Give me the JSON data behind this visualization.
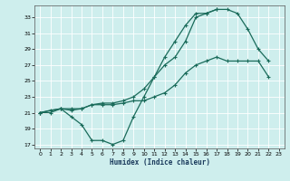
{
  "xlabel": "Humidex (Indice chaleur)",
  "bg_color": "#ceeeed",
  "grid_color": "#ffffff",
  "line_color": "#1a6b5a",
  "xlim": [
    -0.5,
    23.5
  ],
  "ylim": [
    16.5,
    34.5
  ],
  "yticks": [
    17,
    19,
    21,
    23,
    25,
    27,
    29,
    31,
    33
  ],
  "xticks": [
    0,
    1,
    2,
    3,
    4,
    5,
    6,
    7,
    8,
    9,
    10,
    11,
    12,
    13,
    14,
    15,
    16,
    17,
    18,
    19,
    20,
    21,
    22,
    23
  ],
  "line1_x": [
    0,
    1,
    2,
    3,
    4,
    5,
    6,
    7,
    8,
    9,
    10,
    11,
    12,
    13,
    14,
    15,
    16,
    17,
    18,
    19,
    20,
    21,
    22
  ],
  "line1_y": [
    21,
    21.3,
    21.5,
    21.3,
    21.5,
    22.0,
    22.2,
    22.2,
    22.5,
    23.0,
    24.0,
    25.5,
    27.0,
    28.0,
    30.0,
    33.0,
    33.5,
    34.0,
    34.0,
    33.5,
    31.5,
    29.0,
    27.5
  ],
  "line2_x": [
    0,
    1,
    2,
    3,
    4,
    5,
    6,
    7,
    8,
    9,
    10,
    11,
    12,
    13,
    14,
    15,
    16,
    17,
    18,
    19,
    20,
    21,
    22
  ],
  "line2_y": [
    21,
    21,
    21.5,
    21.5,
    21.5,
    22.0,
    22.0,
    22.0,
    22.2,
    22.5,
    22.5,
    23.0,
    23.5,
    24.5,
    26.0,
    27.0,
    27.5,
    28.0,
    27.5,
    27.5,
    27.5,
    27.5,
    25.5
  ],
  "line3_x": [
    0,
    2,
    3,
    4,
    5,
    6,
    7,
    8,
    9,
    10,
    11,
    12,
    13,
    14,
    15,
    16,
    17
  ],
  "line3_y": [
    21,
    21.5,
    20.5,
    19.5,
    17.5,
    17.5,
    17.0,
    17.5,
    20.5,
    23.0,
    25.5,
    28.0,
    30.0,
    32.0,
    33.5,
    33.5,
    34.0
  ]
}
